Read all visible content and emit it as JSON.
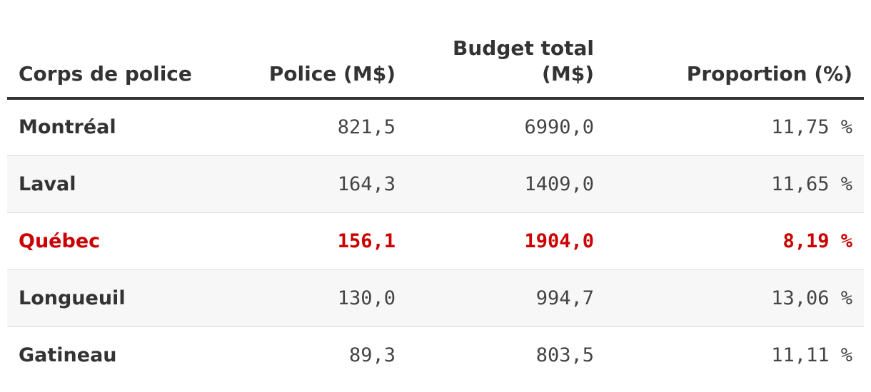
{
  "table": {
    "headers": {
      "corps": "Corps de police",
      "police": "Police (M$)",
      "budget_line1": "Budget total",
      "budget_line2": "(M$)",
      "proportion": "Proportion (%)"
    },
    "rows": [
      {
        "name": "Montréal",
        "police": "821,5",
        "budget": "6990,0",
        "proportion": "11,75 %"
      },
      {
        "name": "Laval",
        "police": "164,3",
        "budget": "1409,0",
        "proportion": "11,65 %"
      },
      {
        "name": "Québec",
        "police": "156,1",
        "budget": "1904,0",
        "proportion": "8,19 %"
      },
      {
        "name": "Longueuil",
        "police": "130,0",
        "budget": "994,7",
        "proportion": "13,06 %"
      },
      {
        "name": "Gatineau",
        "police": "89,3",
        "budget": "803,5",
        "proportion": "11,11 %"
      }
    ],
    "highlight_color": "#cc0000"
  }
}
